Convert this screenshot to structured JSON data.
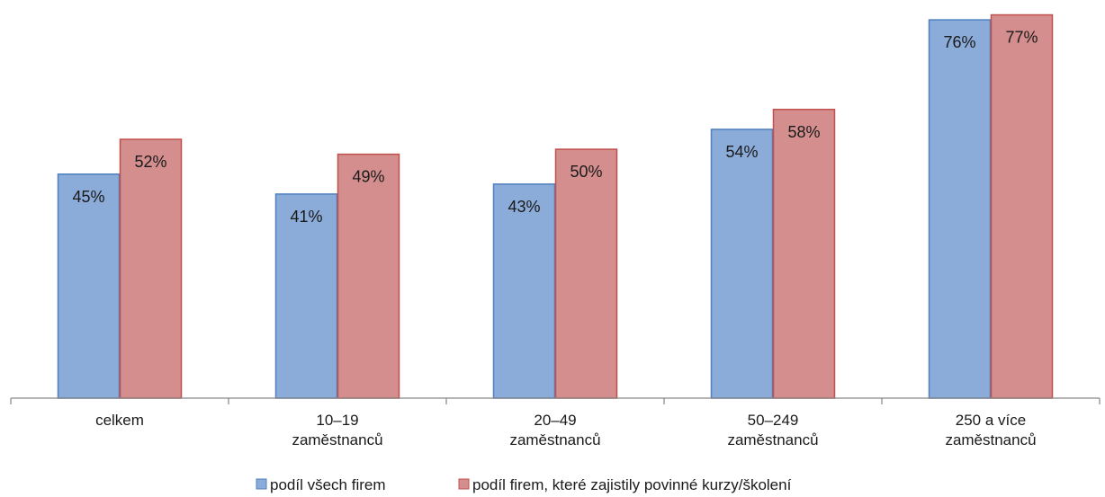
{
  "chart_data": {
    "type": "bar",
    "categories": [
      [
        "celkem"
      ],
      [
        "10–19",
        "zaměstnanců"
      ],
      [
        "20–49",
        "zaměstnanců"
      ],
      [
        "50–249",
        "zaměstnanců"
      ],
      [
        "250 a více",
        "zaměstnanců"
      ]
    ],
    "series": [
      {
        "name": "podíl všech firem",
        "values": [
          45,
          41,
          43,
          54,
          76
        ],
        "labels": [
          "45%",
          "41%",
          "43%",
          "54%",
          "76%"
        ],
        "color": "#8BABD8",
        "stroke": "#4F81BD"
      },
      {
        "name": "podíl firem, které zajistily povinné kurzy/školení",
        "values": [
          52,
          49,
          50,
          58,
          77
        ],
        "labels": [
          "52%",
          "49%",
          "50%",
          "58%",
          "77%"
        ],
        "color": "#D48E8E",
        "stroke": "#C0504D"
      }
    ],
    "ylim": [
      0,
      78
    ],
    "grid": false,
    "legend_position": "bottom",
    "axis_color": "#868686"
  }
}
